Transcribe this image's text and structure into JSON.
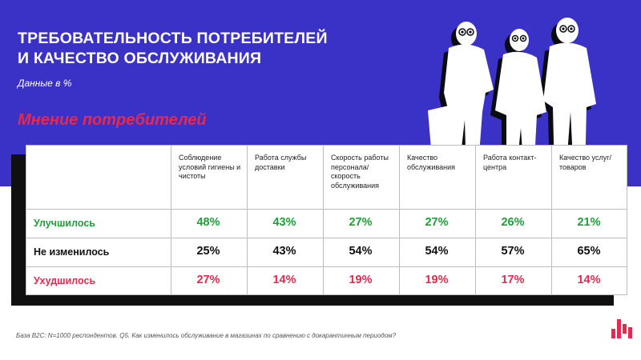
{
  "slide": {
    "title_lines": [
      "ТРЕБОВАТЕЛЬНОСТЬ ПОТРЕБИТЕЛЕЙ",
      "И КАЧЕСТВО ОБСЛУЖИВАНИЯ"
    ],
    "subtitle": "Данные в %",
    "section_title": "Мнение потребителей",
    "footnote": "База B2C: N=1000 респондентов. Q5. Как изменилось обслуживание в магазинах по сравнению с докарантинным периодом?",
    "icons": [
      "shoppers-silhouette-icon",
      "brand-logo-icon"
    ],
    "colors": {
      "band": "#3a31c7",
      "improved": "#1f9e3a",
      "same": "#111111",
      "worse": "#e8284e"
    }
  },
  "chart_data": {
    "type": "table",
    "categories": [
      "Соблюдение условий гигиены  и чистоты",
      "Работа службы доставки",
      "Скорость работы персонала/скорость обслуживания",
      "Качество обслуживания",
      "Работа контакт-центра",
      "Качество услуг/товаров"
    ],
    "series": [
      {
        "name": "Улучшилось",
        "values": [
          48,
          43,
          27,
          27,
          26,
          21
        ]
      },
      {
        "name": "Не изменилось",
        "values": [
          25,
          43,
          54,
          54,
          57,
          65
        ]
      },
      {
        "name": "Ухудшилось",
        "values": [
          27,
          14,
          19,
          19,
          17,
          14
        ]
      }
    ],
    "unit": "%"
  }
}
